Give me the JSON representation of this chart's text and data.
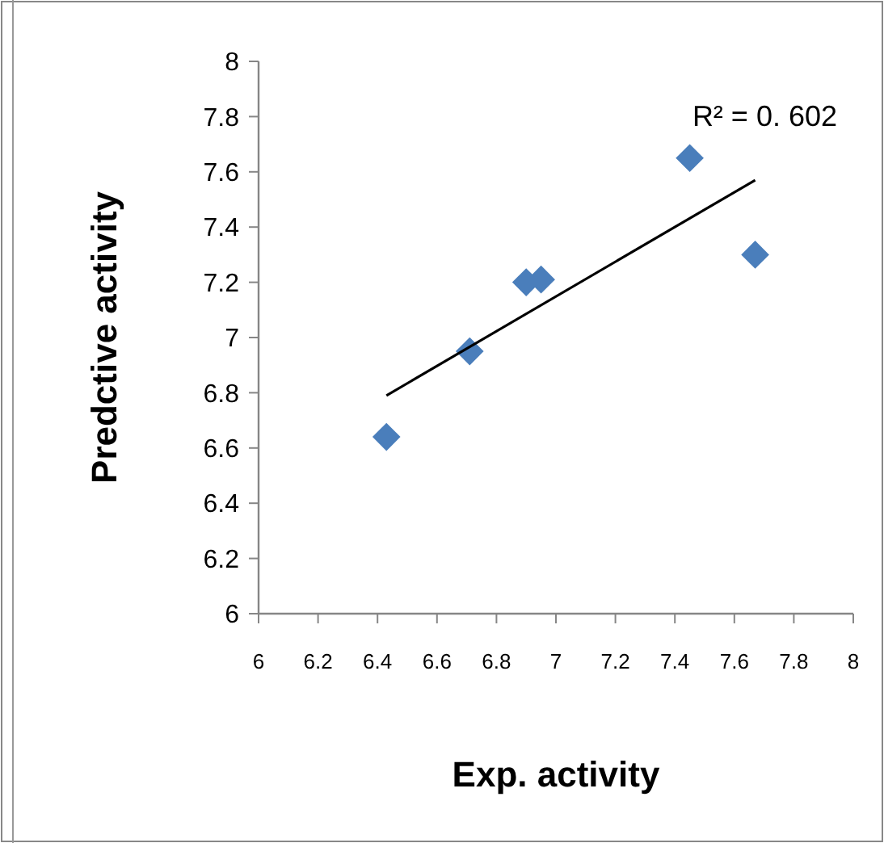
{
  "chart_data": {
    "type": "scatter",
    "xlabel": "Exp. activity",
    "ylabel": "Predctive activity",
    "marker": "diamond",
    "grid": false,
    "xlim": [
      6,
      8
    ],
    "xticks": [
      6,
      6.2,
      6.4,
      6.6,
      6.8,
      7,
      7.2,
      7.4,
      7.6,
      7.8,
      8
    ],
    "ylim": [
      6,
      8
    ],
    "yticks": [
      6,
      6.2,
      6.4,
      6.6,
      6.8,
      7,
      7.2,
      7.4,
      7.6,
      7.8,
      8
    ],
    "series": [
      {
        "color": "#4a7ebb",
        "x": [
          6.43,
          6.71,
          6.9,
          6.95,
          7.45,
          7.67
        ],
        "values": [
          6.64,
          6.95,
          7.2,
          7.21,
          7.65,
          7.3
        ]
      },
      {
        "type": "line",
        "marker": "none",
        "color": "#000000",
        "x": [
          6.43,
          7.67
        ],
        "values": [
          6.79,
          7.57
        ]
      }
    ],
    "annotations": [
      "R² = 0. 602"
    ]
  }
}
